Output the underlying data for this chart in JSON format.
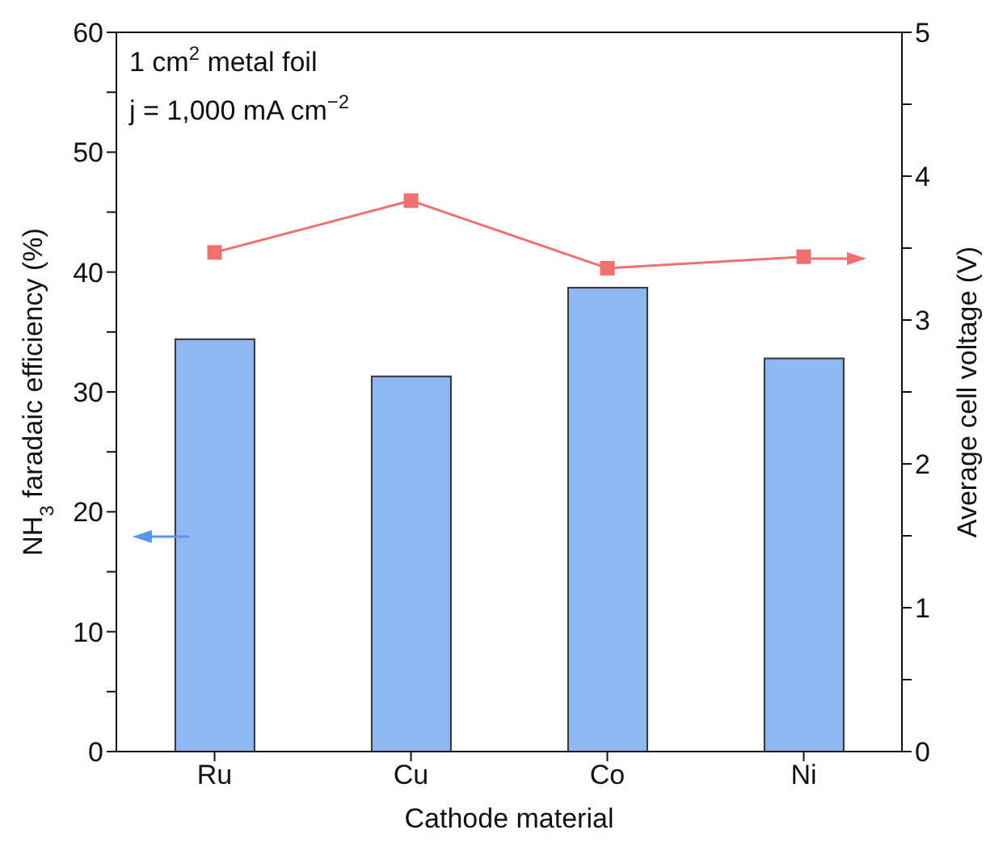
{
  "chart_data": {
    "type": "bar",
    "xlabel": "Cathode material",
    "ylabel": "NH$_{3}$ faradaic efficiency (%)",
    "y2label": "Average cell voltage (V)",
    "annotations": [
      "1 cm$^{2}$ metal foil",
      "j = 1,000 mA cm$^{−2}$"
    ],
    "categories": [
      "Ru",
      "Cu",
      "Co",
      "Ni"
    ],
    "series": [
      {
        "color": "#8fb8f0",
        "values": [
          34.4,
          31.3,
          38.7,
          32.8
        ]
      },
      {
        "type": "line",
        "axis": "y2",
        "color": "#f07070",
        "marker": "square",
        "values": [
          3.47,
          3.83,
          3.36,
          3.44
        ]
      }
    ],
    "ylim": [
      0,
      60
    ],
    "yticks": [
      0,
      {
        "value": 5,
        "label": null
      },
      10,
      {
        "value": 15,
        "label": null
      },
      20,
      {
        "value": 25,
        "label": null
      },
      30,
      {
        "value": 35,
        "label": null
      },
      40,
      {
        "value": 45,
        "label": null
      },
      50,
      {
        "value": 55,
        "label": null
      },
      60
    ],
    "y2lim": [
      0,
      5
    ],
    "y2ticks": [
      0,
      {
        "value": 0.5,
        "label": null
      },
      1,
      {
        "value": 1.5,
        "label": null
      },
      2,
      {
        "value": 2.5,
        "label": null
      },
      3,
      {
        "value": 3.5,
        "label": null
      },
      4,
      {
        "value": 4.5,
        "label": null
      },
      5
    ]
  }
}
